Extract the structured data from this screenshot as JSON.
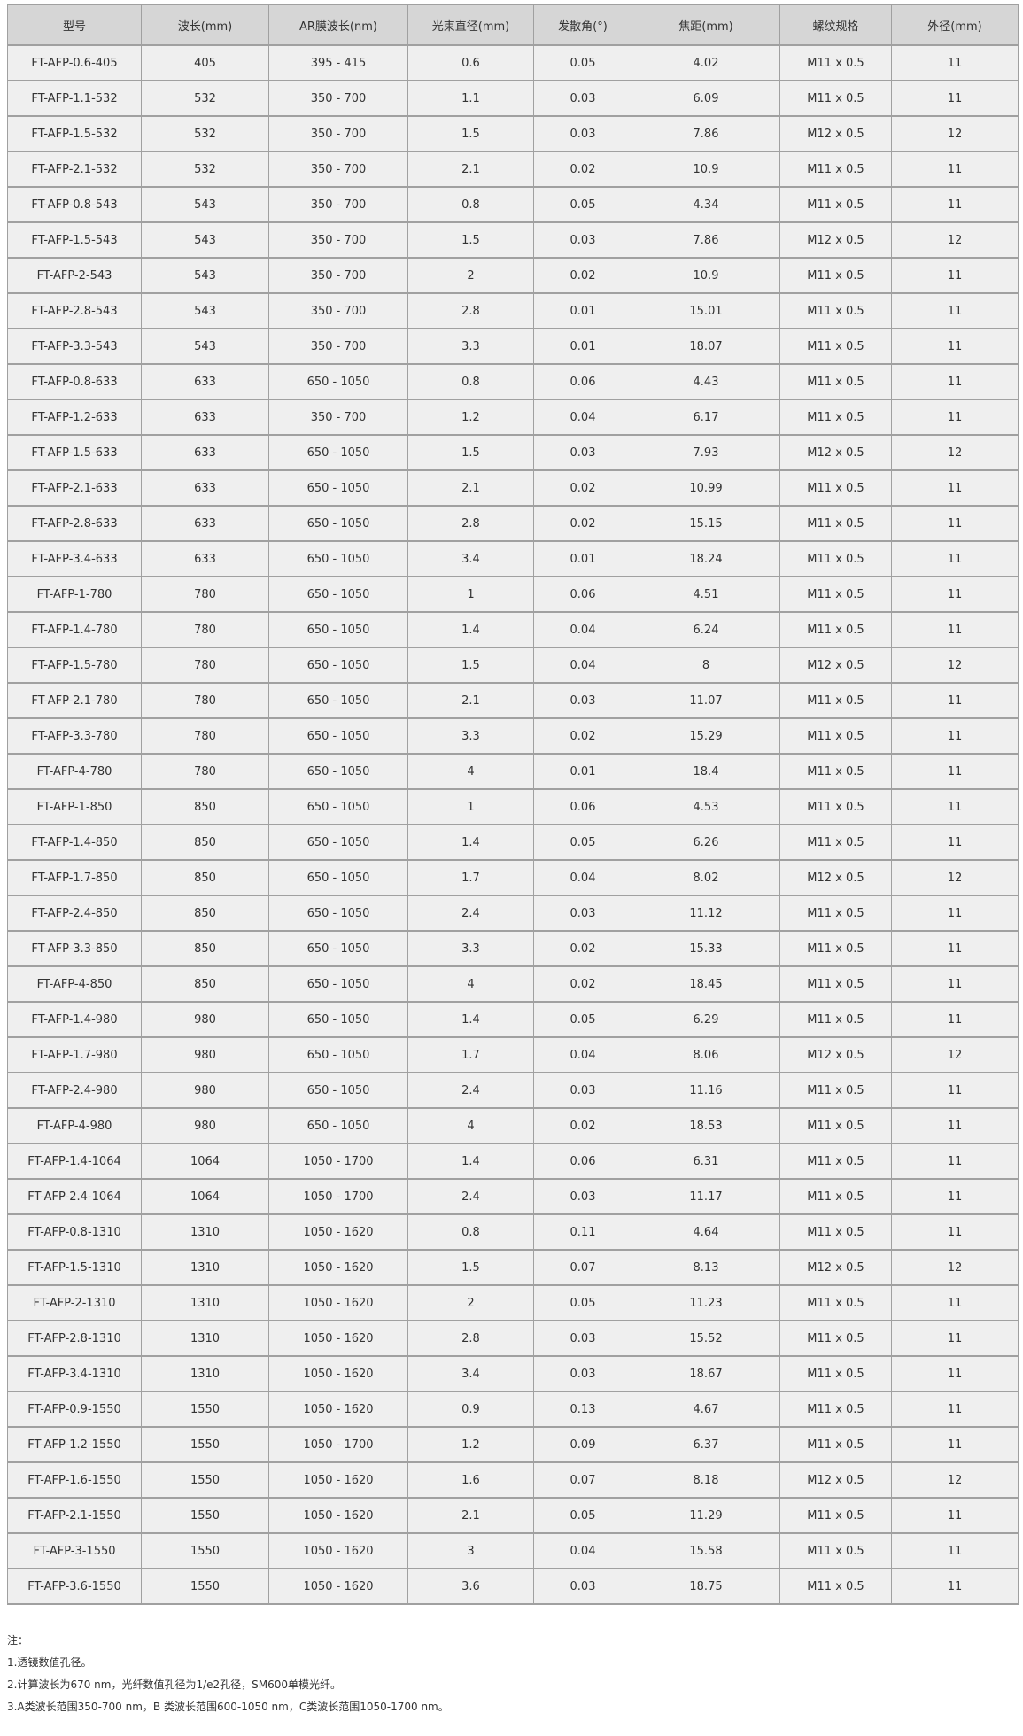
{
  "table": {
    "headers": [
      "型号",
      "波长(mm)",
      "AR膜波长(nm)",
      "光束直径(mm)",
      "发散角(°)",
      "焦距(mm)",
      "螺纹规格",
      "外径(mm)"
    ],
    "rows": [
      [
        "FT-AFP-0.6-405",
        "405",
        "395 - 415",
        "0.6",
        "0.05",
        "4.02",
        "M11 x 0.5",
        "11"
      ],
      [
        "FT-AFP-1.1-532",
        "532",
        "350 - 700",
        "1.1",
        "0.03",
        "6.09",
        "M11 x 0.5",
        "11"
      ],
      [
        "FT-AFP-1.5-532",
        "532",
        "350 - 700",
        "1.5",
        "0.03",
        "7.86",
        "M12 x 0.5",
        "12"
      ],
      [
        "FT-AFP-2.1-532",
        "532",
        "350 - 700",
        "2.1",
        "0.02",
        "10.9",
        "M11 x 0.5",
        "11"
      ],
      [
        "FT-AFP-0.8-543",
        "543",
        "350 - 700",
        "0.8",
        "0.05",
        "4.34",
        "M11 x 0.5",
        "11"
      ],
      [
        "FT-AFP-1.5-543",
        "543",
        "350 - 700",
        "1.5",
        "0.03",
        "7.86",
        "M12 x 0.5",
        "12"
      ],
      [
        "FT-AFP-2-543",
        "543",
        "350 - 700",
        "2",
        "0.02",
        "10.9",
        "M11 x 0.5",
        "11"
      ],
      [
        "FT-AFP-2.8-543",
        "543",
        "350 - 700",
        "2.8",
        "0.01",
        "15.01",
        "M11 x 0.5",
        "11"
      ],
      [
        "FT-AFP-3.3-543",
        "543",
        "350 - 700",
        "3.3",
        "0.01",
        "18.07",
        "M11 x 0.5",
        "11"
      ],
      [
        "FT-AFP-0.8-633",
        "633",
        "650 - 1050",
        "0.8",
        "0.06",
        "4.43",
        "M11 x 0.5",
        "11"
      ],
      [
        "FT-AFP-1.2-633",
        "633",
        "350 - 700",
        "1.2",
        "0.04",
        "6.17",
        "M11 x 0.5",
        "11"
      ],
      [
        "FT-AFP-1.5-633",
        "633",
        "650 - 1050",
        "1.5",
        "0.03",
        "7.93",
        "M12 x 0.5",
        "12"
      ],
      [
        "FT-AFP-2.1-633",
        "633",
        "650 - 1050",
        "2.1",
        "0.02",
        "10.99",
        "M11 x 0.5",
        "11"
      ],
      [
        "FT-AFP-2.8-633",
        "633",
        "650 - 1050",
        "2.8",
        "0.02",
        "15.15",
        "M11 x 0.5",
        "11"
      ],
      [
        "FT-AFP-3.4-633",
        "633",
        "650 - 1050",
        "3.4",
        "0.01",
        "18.24",
        "M11 x 0.5",
        "11"
      ],
      [
        "FT-AFP-1-780",
        "780",
        "650 - 1050",
        "1",
        "0.06",
        "4.51",
        "M11 x 0.5",
        "11"
      ],
      [
        "FT-AFP-1.4-780",
        "780",
        "650 - 1050",
        "1.4",
        "0.04",
        "6.24",
        "M11 x 0.5",
        "11"
      ],
      [
        "FT-AFP-1.5-780",
        "780",
        "650 - 1050",
        "1.5",
        "0.04",
        "8",
        "M12 x 0.5",
        "12"
      ],
      [
        "FT-AFP-2.1-780",
        "780",
        "650 - 1050",
        "2.1",
        "0.03",
        "11.07",
        "M11 x 0.5",
        "11"
      ],
      [
        "FT-AFP-3.3-780",
        "780",
        "650 - 1050",
        "3.3",
        "0.02",
        "15.29",
        "M11 x 0.5",
        "11"
      ],
      [
        "FT-AFP-4-780",
        "780",
        "650 - 1050",
        "4",
        "0.01",
        "18.4",
        "M11 x 0.5",
        "11"
      ],
      [
        "FT-AFP-1-850",
        "850",
        "650 - 1050",
        "1",
        "0.06",
        "4.53",
        "M11 x 0.5",
        "11"
      ],
      [
        "FT-AFP-1.4-850",
        "850",
        "650 - 1050",
        "1.4",
        "0.05",
        "6.26",
        "M11 x 0.5",
        "11"
      ],
      [
        "FT-AFP-1.7-850",
        "850",
        "650 - 1050",
        "1.7",
        "0.04",
        "8.02",
        "M12 x 0.5",
        "12"
      ],
      [
        "FT-AFP-2.4-850",
        "850",
        "650 - 1050",
        "2.4",
        "0.03",
        "11.12",
        "M11 x 0.5",
        "11"
      ],
      [
        "FT-AFP-3.3-850",
        "850",
        "650 - 1050",
        "3.3",
        "0.02",
        "15.33",
        "M11 x 0.5",
        "11"
      ],
      [
        "FT-AFP-4-850",
        "850",
        "650 - 1050",
        "4",
        "0.02",
        "18.45",
        "M11 x 0.5",
        "11"
      ],
      [
        "FT-AFP-1.4-980",
        "980",
        "650 - 1050",
        "1.4",
        "0.05",
        "6.29",
        "M11 x 0.5",
        "11"
      ],
      [
        "FT-AFP-1.7-980",
        "980",
        "650 - 1050",
        "1.7",
        "0.04",
        "8.06",
        "M12 x 0.5",
        "12"
      ],
      [
        "FT-AFP-2.4-980",
        "980",
        "650 - 1050",
        "2.4",
        "0.03",
        "11.16",
        "M11 x 0.5",
        "11"
      ],
      [
        "FT-AFP-4-980",
        "980",
        "650 - 1050",
        "4",
        "0.02",
        "18.53",
        "M11 x 0.5",
        "11"
      ],
      [
        "FT-AFP-1.4-1064",
        "1064",
        "1050 - 1700",
        "1.4",
        "0.06",
        "6.31",
        "M11 x 0.5",
        "11"
      ],
      [
        "FT-AFP-2.4-1064",
        "1064",
        "1050 - 1700",
        "2.4",
        "0.03",
        "11.17",
        "M11 x 0.5",
        "11"
      ],
      [
        "FT-AFP-0.8-1310",
        "1310",
        "1050 - 1620",
        "0.8",
        "0.11",
        "4.64",
        "M11 x 0.5",
        "11"
      ],
      [
        "FT-AFP-1.5-1310",
        "1310",
        "1050 - 1620",
        "1.5",
        "0.07",
        "8.13",
        "M12 x 0.5",
        "12"
      ],
      [
        "FT-AFP-2-1310",
        "1310",
        "1050 - 1620",
        "2",
        "0.05",
        "11.23",
        "M11 x 0.5",
        "11"
      ],
      [
        "FT-AFP-2.8-1310",
        "1310",
        "1050 - 1620",
        "2.8",
        "0.03",
        "15.52",
        "M11 x 0.5",
        "11"
      ],
      [
        "FT-AFP-3.4-1310",
        "1310",
        "1050 - 1620",
        "3.4",
        "0.03",
        "18.67",
        "M11 x 0.5",
        "11"
      ],
      [
        "FT-AFP-0.9-1550",
        "1550",
        "1050 - 1620",
        "0.9",
        "0.13",
        "4.67",
        "M11 x 0.5",
        "11"
      ],
      [
        "FT-AFP-1.2-1550",
        "1550",
        "1050 - 1700",
        "1.2",
        "0.09",
        "6.37",
        "M11 x 0.5",
        "11"
      ],
      [
        "FT-AFP-1.6-1550",
        "1550",
        "1050 - 1620",
        "1.6",
        "0.07",
        "8.18",
        "M12 x 0.5",
        "12"
      ],
      [
        "FT-AFP-2.1-1550",
        "1550",
        "1050 - 1620",
        "2.1",
        "0.05",
        "11.29",
        "M11 x 0.5",
        "11"
      ],
      [
        "FT-AFP-3-1550",
        "1550",
        "1050 - 1620",
        "3",
        "0.04",
        "15.58",
        "M11 x 0.5",
        "11"
      ],
      [
        "FT-AFP-3.6-1550",
        "1550",
        "1050 - 1620",
        "3.6",
        "0.03",
        "18.75",
        "M11 x 0.5",
        "11"
      ]
    ]
  },
  "notes": [
    "注：",
    "1.透镜数值孔径。",
    "2.计算波长为670 nm，光纤数值孔径为1/e2孔径，SM600单模光纤。",
    "3.A类波长范围350-700 nm，B 类波长范围600-1050 nm，C类波长范围1050-1700 nm。"
  ]
}
